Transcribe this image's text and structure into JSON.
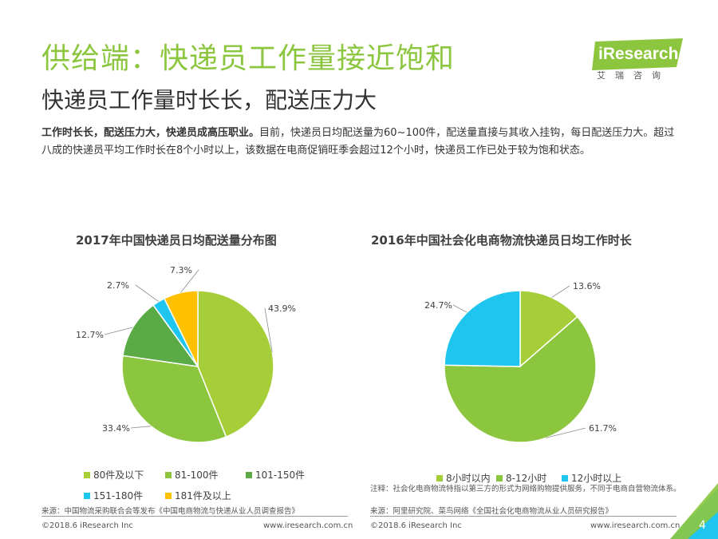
{
  "title": "供给端：快递员工作量接近饱和",
  "subtitle": "快递员工作量时长长，配送压力大",
  "summary": {
    "bold": "工作时长长，配送压力大，快递员成高压职业。",
    "text": "目前，快递员日均配送量为60~100件，配送量直接与其收入挂钩，每日配送压力大。超过八成的快递员平均工作时长在8个小时以上，该数据在电商促销旺季会超过12个小时，快递员工作已处于较为饱和状态。"
  },
  "logo": {
    "name": "iResearch",
    "sub": "艾瑞咨询",
    "color": "#8cc63f"
  },
  "chart_data": [
    {
      "type": "pie",
      "title": "2017年中国快递员日均配送量分布图",
      "categories": [
        "80件及以下",
        "81-100件",
        "101-150件",
        "151-180件",
        "181件及以上"
      ],
      "values": [
        43.9,
        33.4,
        12.7,
        2.7,
        7.3
      ],
      "labels": [
        "43.9%",
        "33.4%",
        "12.7%",
        "2.7%",
        "7.3%"
      ],
      "colors": [
        "#a6ce39",
        "#8cc63f",
        "#5aaa46",
        "#1ec6ef",
        "#ffc000"
      ],
      "start_angle_deg": 0,
      "direction": "clockwise",
      "legend_position": "bottom"
    },
    {
      "type": "pie",
      "title": "2016年中国社会化电商物流快递员日均工作时长",
      "categories": [
        "8小时以内",
        "8-12小时",
        "12小时以上"
      ],
      "values": [
        13.6,
        61.7,
        24.7
      ],
      "labels": [
        "13.6%",
        "61.7%",
        "24.7%"
      ],
      "colors": [
        "#a6ce39",
        "#8cc63f",
        "#1ec6ef"
      ],
      "start_angle_deg": 0,
      "direction": "clockwise",
      "legend_position": "bottom"
    }
  ],
  "note": "注释：社会化电商物流特指以第三方的形式为网络购物提供服务，不同于电商自营物流体系。",
  "source_left": "来源：中国物流采购联合会等发布《中国电商物流与快递从业人员调查报告》",
  "source_right": "来源：阿里研究院、菜鸟网络《全国社会化电商物流从业人员研究报告》",
  "footer": {
    "copyright": "©2018.6 iResearch Inc",
    "url": "www.iresearch.com.cn",
    "page": "4"
  }
}
